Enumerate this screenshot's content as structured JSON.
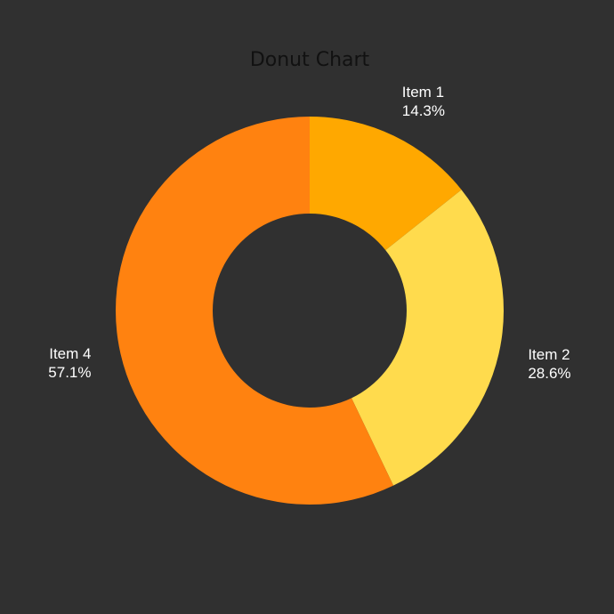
{
  "colors": {
    "background": "#303030",
    "title": "#111111",
    "label": "#ffffff"
  },
  "chart_data": {
    "type": "pie",
    "subtype": "donut",
    "title": "Donut Chart",
    "categories": [
      "Item 1",
      "Item 2",
      "Item 4"
    ],
    "values": [
      14.3,
      28.6,
      57.1
    ],
    "labels": [
      "14.3%",
      "28.6%",
      "57.1%"
    ],
    "colors": [
      "#FFA800",
      "#FFDB4D",
      "#FF8210"
    ],
    "legend": "none"
  }
}
